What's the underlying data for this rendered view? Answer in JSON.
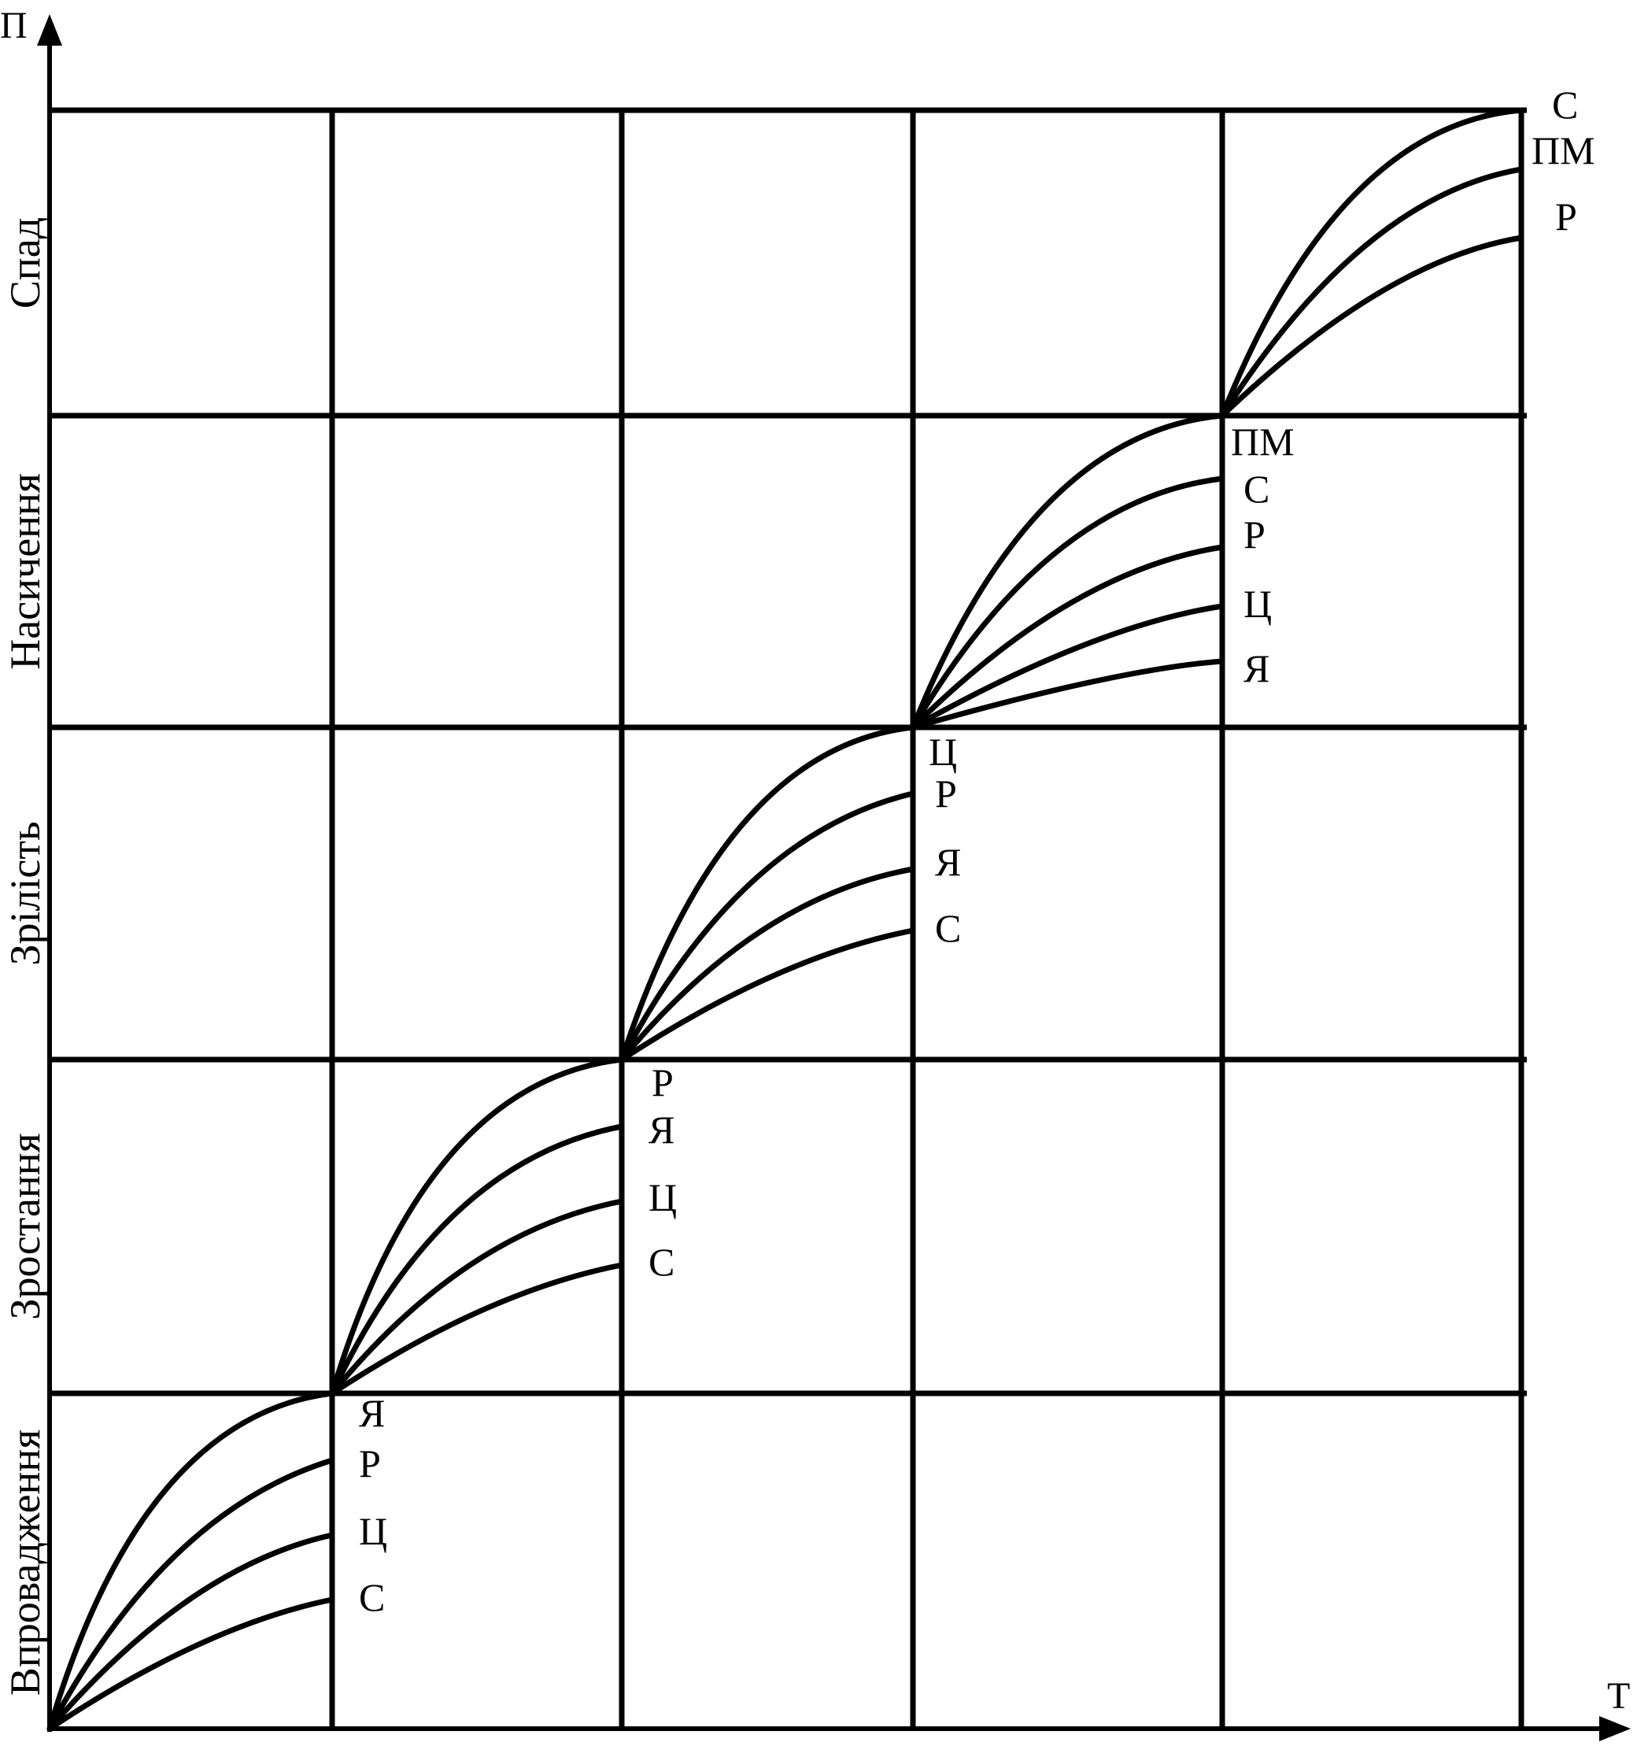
{
  "axes": {
    "y_label": "П",
    "x_label": "Т"
  },
  "stages": [
    {
      "id": "introduction",
      "label": "Впровадження"
    },
    {
      "id": "growth",
      "label": "Зростання"
    },
    {
      "id": "maturity",
      "label": "Зрілість"
    },
    {
      "id": "saturation",
      "label": "Насичення"
    },
    {
      "id": "decline",
      "label": "Спад"
    }
  ],
  "curve_groups": [
    {
      "stage": "introduction",
      "labels": [
        "Я",
        "Р",
        "Ц",
        "С"
      ]
    },
    {
      "stage": "growth",
      "labels": [
        "Р",
        "Я",
        "Ц",
        "С"
      ]
    },
    {
      "stage": "maturity",
      "labels": [
        "Ц",
        "Р",
        "Я",
        "С"
      ]
    },
    {
      "stage": "saturation",
      "labels": [
        "ПМ",
        "С",
        "Р",
        "Ц",
        "Я"
      ]
    },
    {
      "stage": "decline",
      "labels": [
        "С",
        "ПМ",
        "Р"
      ]
    }
  ]
}
